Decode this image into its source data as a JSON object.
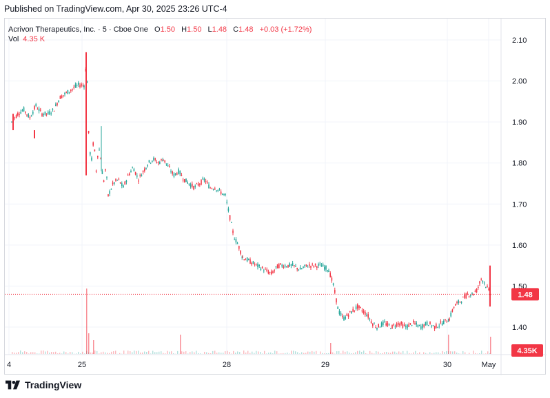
{
  "header": {
    "published": "Published on TradingView.com, Apr 30, 2025 23:26 UTC-4"
  },
  "legend": {
    "symbol": "Acrivon Therapeutics, Inc.",
    "interval": "5",
    "exchange": "Cboe One",
    "open_label": "O",
    "open": "1.50",
    "high_label": "H",
    "high": "1.50",
    "low_label": "L",
    "low": "1.48",
    "close_label": "C",
    "close": "1.48",
    "change": "+0.03 (+1.72%)",
    "vol_label": "Vol",
    "vol": "4.35 K"
  },
  "colors": {
    "up": "#26a69a",
    "down": "#f23645",
    "grid": "#f0f3fa",
    "axis_text": "#131722",
    "price_line": "#f23645"
  },
  "brand": {
    "name": "TradingView",
    "icon": "tradingview-logo-icon"
  },
  "chart_data": {
    "type": "candlestick",
    "y_axis": {
      "ticks": [
        "2.10",
        "2.00",
        "1.90",
        "1.80",
        "1.70",
        "1.60",
        "1.50",
        "1.40"
      ],
      "ylim": [
        1.322,
        2.146
      ]
    },
    "x_axis": {
      "ticks": [
        "4",
        "25",
        "28",
        "29",
        "30",
        "May"
      ]
    },
    "last_price": "1.48",
    "last_volume": "4.35K",
    "segments": [
      {
        "x0": 10,
        "x1": 115,
        "p": [
          1.9,
          1.92,
          1.93,
          1.91,
          1.94,
          1.92,
          1.92,
          1.93,
          1.96,
          1.97,
          1.98,
          1.99,
          1.99
        ]
      },
      {
        "x0": 115,
        "x1": 150,
        "p": [
          1.99,
          2.05,
          1.85,
          1.8,
          1.86,
          1.78,
          1.84,
          1.81,
          1.75,
          1.79,
          1.72
        ]
      },
      {
        "x0": 150,
        "x1": 230,
        "p": [
          1.72,
          1.75,
          1.76,
          1.74,
          1.77,
          1.79,
          1.76,
          1.78,
          1.8,
          1.81,
          1.8,
          1.81
        ]
      },
      {
        "x0": 230,
        "x1": 320,
        "p": [
          1.81,
          1.79,
          1.77,
          1.78,
          1.76,
          1.75,
          1.74,
          1.75,
          1.76,
          1.74,
          1.74,
          1.73,
          1.72
        ]
      },
      {
        "x0": 320,
        "x1": 345,
        "p": [
          1.72,
          1.67,
          1.62,
          1.6,
          1.57
        ]
      },
      {
        "x0": 345,
        "x1": 470,
        "p": [
          1.57,
          1.56,
          1.55,
          1.54,
          1.53,
          1.55,
          1.55,
          1.55,
          1.54,
          1.55,
          1.55,
          1.55,
          1.54
        ]
      },
      {
        "x0": 470,
        "x1": 540,
        "p": [
          1.54,
          1.5,
          1.44,
          1.42,
          1.43,
          1.44,
          1.45,
          1.44,
          1.43,
          1.41,
          1.4
        ]
      },
      {
        "x0": 540,
        "x1": 645,
        "p": [
          1.4,
          1.41,
          1.4,
          1.41,
          1.4,
          1.41,
          1.4,
          1.41,
          1.4,
          1.41,
          1.42
        ]
      },
      {
        "x0": 645,
        "x1": 705,
        "p": [
          1.42,
          1.45,
          1.46,
          1.47,
          1.48,
          1.48,
          1.49,
          1.52,
          1.5,
          1.48
        ]
      }
    ],
    "volume_spikes": [
      {
        "x": 118,
        "v": 0.95
      },
      {
        "x": 121,
        "v": 0.3
      },
      {
        "x": 128,
        "v": 0.2
      },
      {
        "x": 254,
        "v": 0.28
      },
      {
        "x": 472,
        "v": 0.16
      },
      {
        "x": 643,
        "v": 0.28
      },
      {
        "x": 704,
        "v": 0.25
      }
    ]
  }
}
